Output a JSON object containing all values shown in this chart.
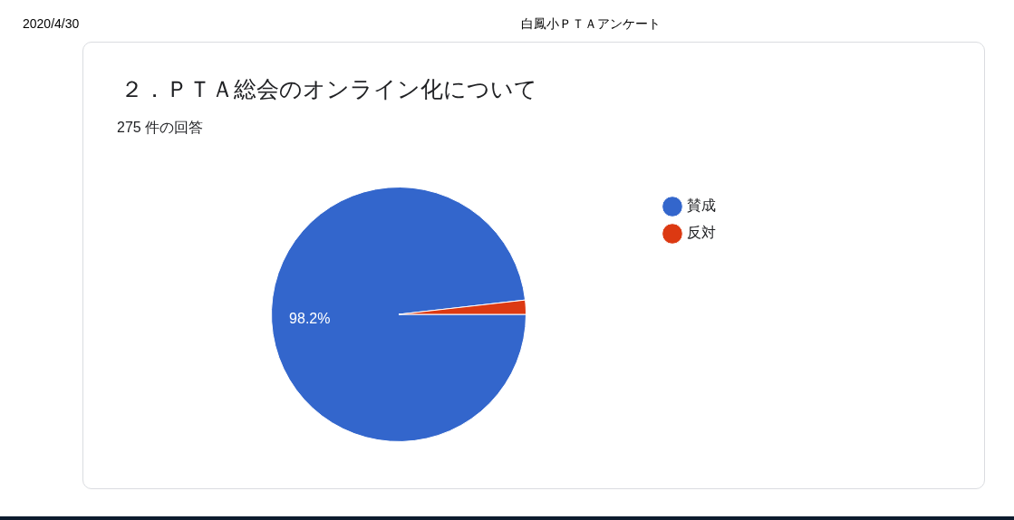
{
  "chart_data": {
    "type": "pie",
    "title": "２．ＰＴＡ総会のオンライン化について",
    "subtitle": "275 件の回答",
    "annotations": [
      "2020/4/30",
      "白鳳小ＰＴＡアンケート"
    ],
    "categories": [
      "賛成",
      "反対"
    ],
    "values": [
      98.2,
      1.8
    ],
    "colors": [
      "#3366cc",
      "#dc3912"
    ],
    "value_labels": [
      "98.2%",
      null
    ],
    "legend": "top right"
  }
}
